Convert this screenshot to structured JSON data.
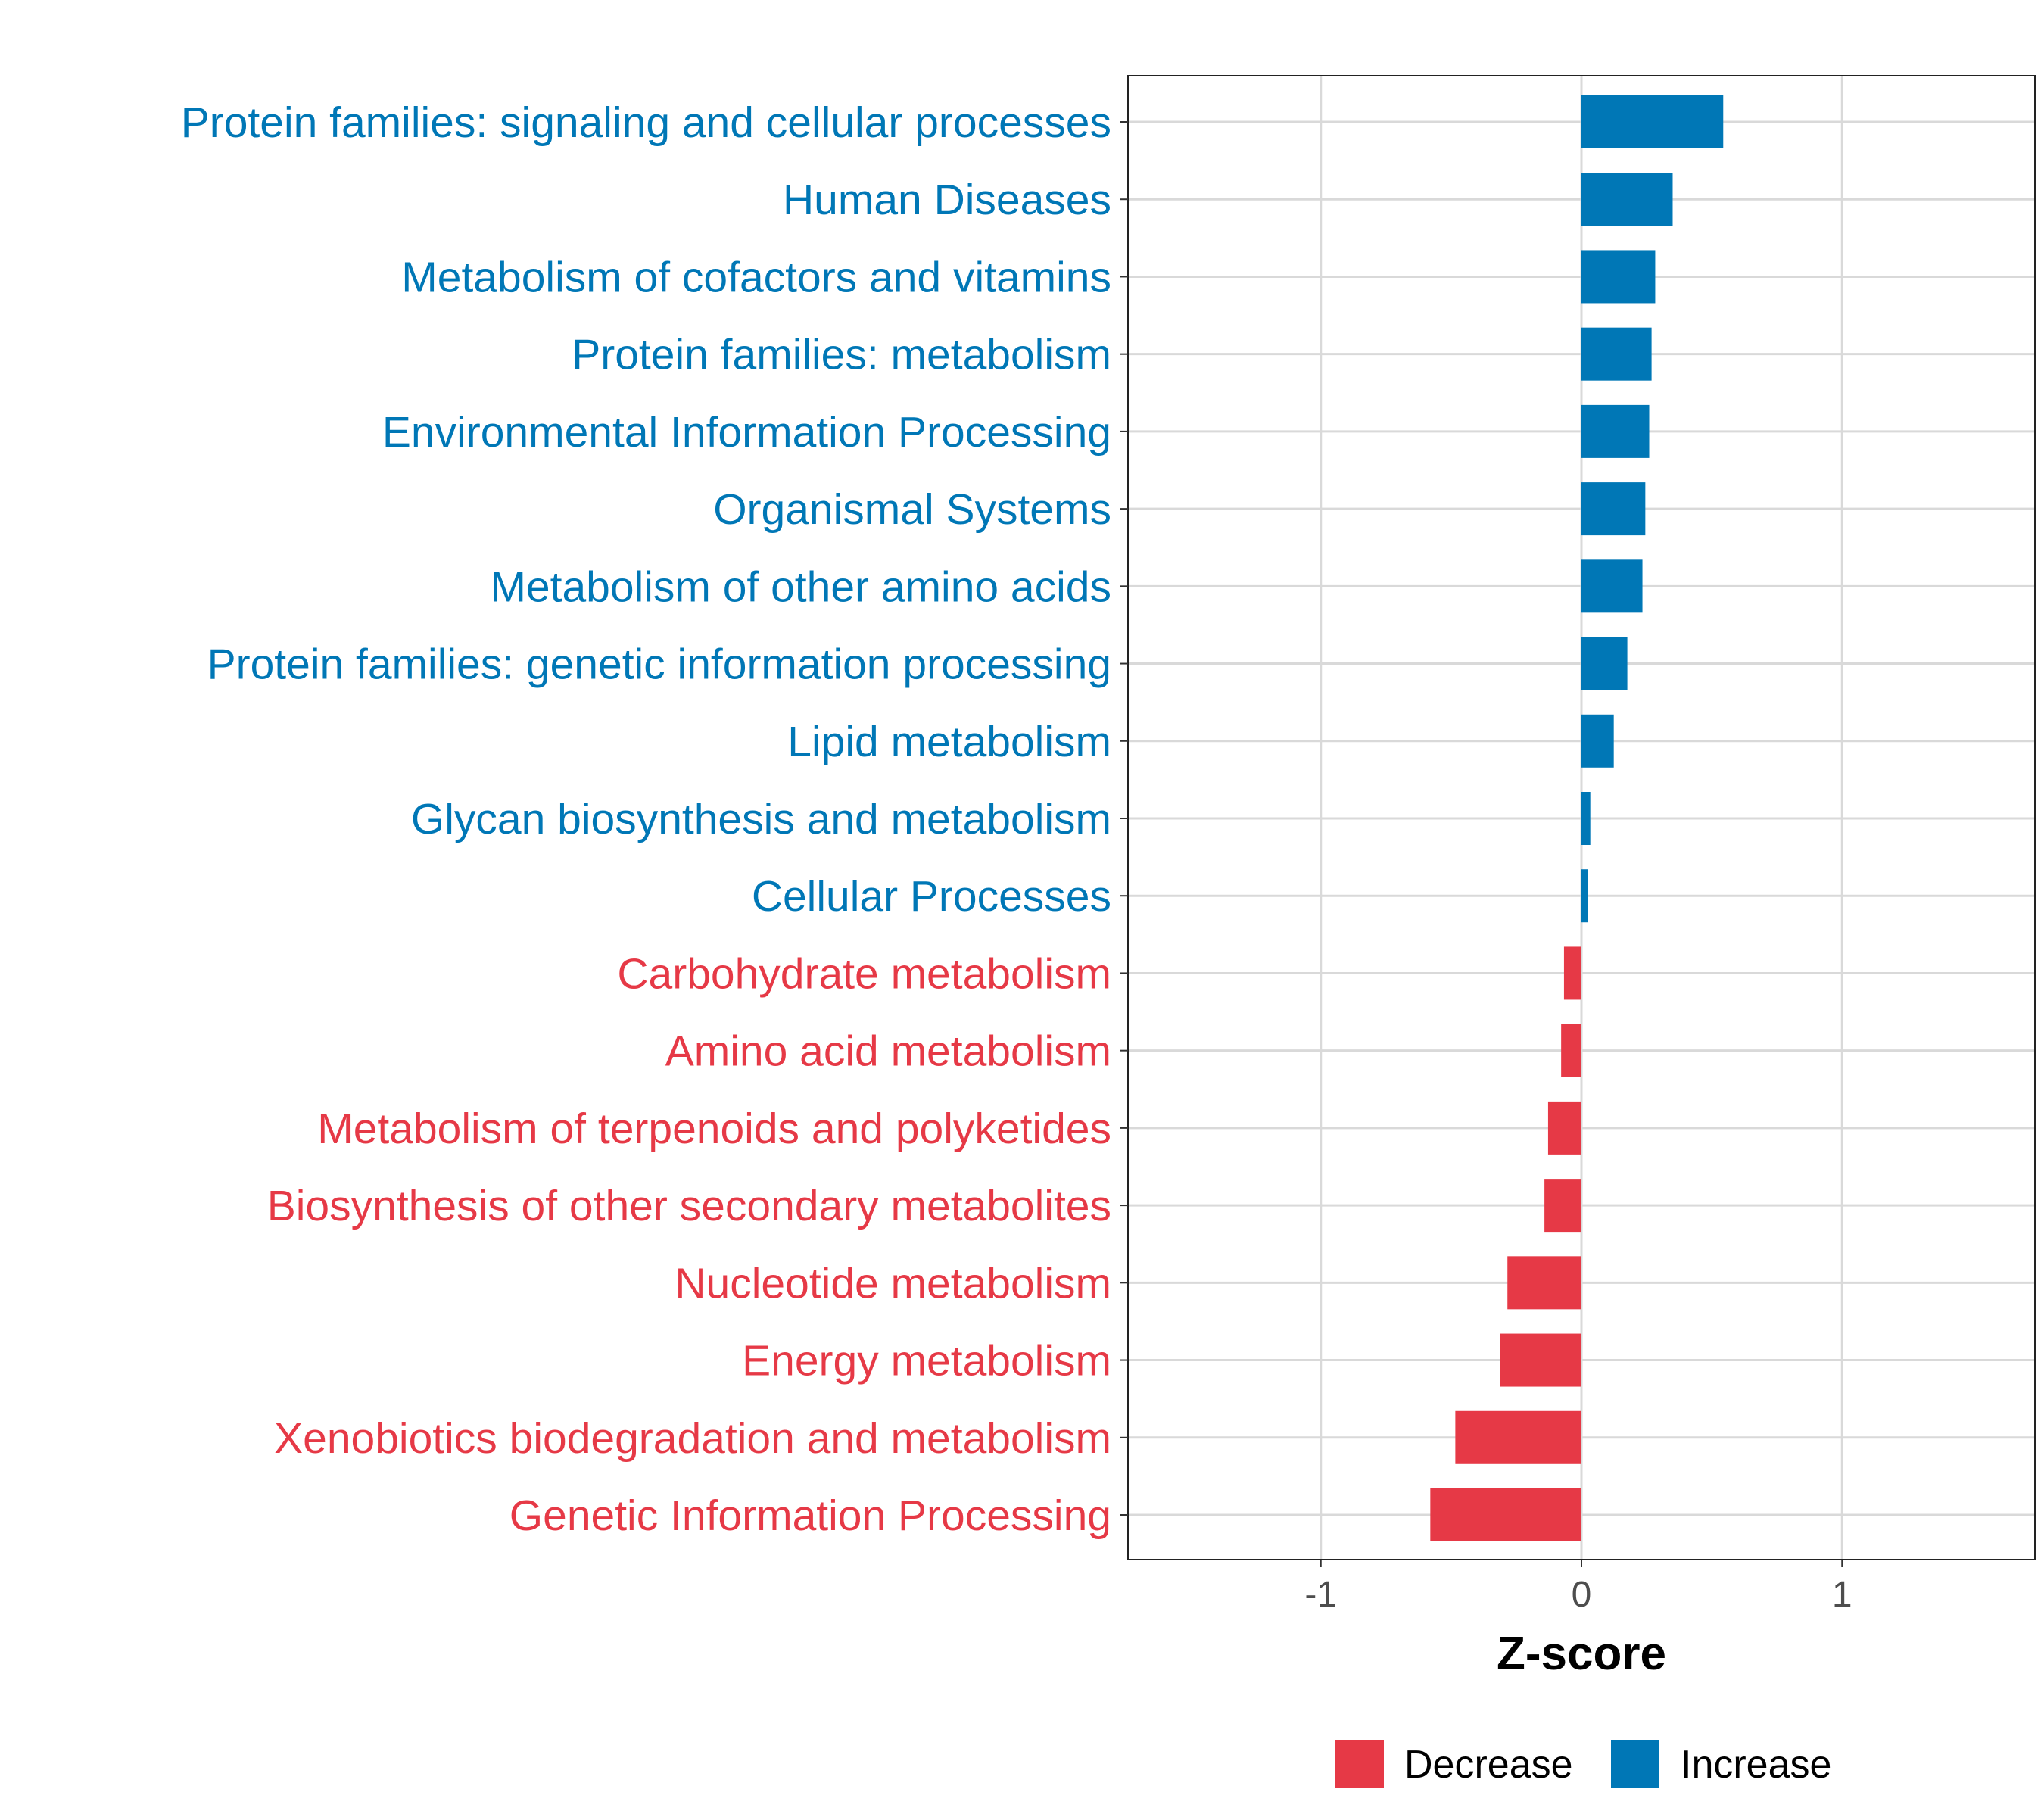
{
  "chart_data": {
    "type": "bar",
    "orientation": "horizontal",
    "title": "",
    "xlabel": "Z-score",
    "ylabel": "",
    "xlim": [
      -1.74,
      1.74
    ],
    "xticks": [
      -1,
      0,
      1
    ],
    "xtick_labels": [
      "-1",
      "0",
      "1"
    ],
    "grid": true,
    "legend_position": "bottom",
    "legend": [
      {
        "label": "Decrease",
        "color": "#E63946"
      },
      {
        "label": "Increase",
        "color": "#0077B6"
      }
    ],
    "categories": [
      "Protein families: signaling and cellular processes",
      "Human Diseases",
      "Metabolism of cofactors and vitamins",
      "Protein families: metabolism",
      "Environmental Information Processing",
      "Organismal Systems",
      "Metabolism of other amino acids",
      "Protein families: genetic information processing",
      "Lipid metabolism",
      "Glycan biosynthesis and metabolism",
      "Cellular Processes",
      "Carbohydrate metabolism",
      "Amino acid metabolism",
      "Metabolism of terpenoids and polyketides",
      "Biosynthesis of other secondary metabolites",
      "Nucleotide metabolism",
      "Energy metabolism",
      "Xenobiotics biodegradation and metabolism",
      "Genetic Information Processing"
    ],
    "values": [
      0.544,
      0.35,
      0.283,
      0.269,
      0.26,
      0.245,
      0.234,
      0.176,
      0.124,
      0.034,
      0.025,
      -0.067,
      -0.078,
      -0.128,
      -0.142,
      -0.284,
      -0.313,
      -0.484,
      -0.58
    ]
  }
}
